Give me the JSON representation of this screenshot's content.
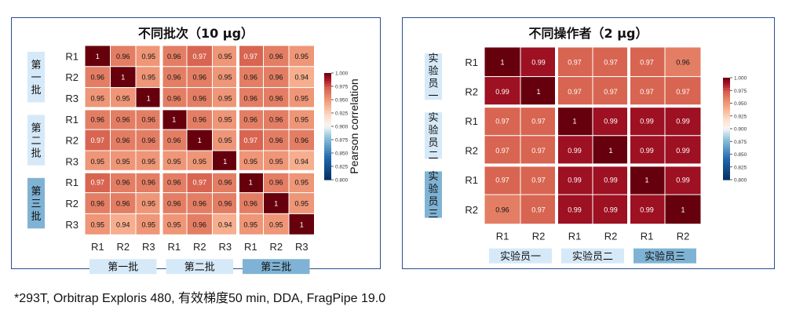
{
  "footer_note": "*293T, Orbitrap Exploris 480, 有效梯度50 min, DDA, FragPipe 19.0",
  "chart_data": [
    {
      "type": "heatmap",
      "title": "不同批次（10 μg）",
      "row_labels": [
        "R1",
        "R2",
        "R3",
        "R1",
        "R2",
        "R3",
        "R1",
        "R2",
        "R3"
      ],
      "col_labels": [
        "R1",
        "R2",
        "R3",
        "R1",
        "R2",
        "R3",
        "R1",
        "R2",
        "R3"
      ],
      "row_groups": [
        "第一批",
        "第二批",
        "第三批"
      ],
      "col_groups": [
        "第一批",
        "第二批",
        "第三批"
      ],
      "values": [
        [
          1,
          0.96,
          0.95,
          0.96,
          0.97,
          0.95,
          0.97,
          0.96,
          0.95
        ],
        [
          0.96,
          1,
          0.95,
          0.96,
          0.96,
          0.95,
          0.96,
          0.96,
          0.94
        ],
        [
          0.95,
          0.95,
          1,
          0.96,
          0.96,
          0.95,
          0.96,
          0.96,
          0.95
        ],
        [
          0.96,
          0.96,
          0.96,
          1,
          0.96,
          0.95,
          0.96,
          0.96,
          0.95
        ],
        [
          0.97,
          0.96,
          0.96,
          0.96,
          1,
          0.95,
          0.97,
          0.96,
          0.96
        ],
        [
          0.95,
          0.95,
          0.95,
          0.95,
          0.95,
          1,
          0.95,
          0.95,
          0.94
        ],
        [
          0.97,
          0.96,
          0.96,
          0.96,
          0.97,
          0.96,
          1,
          0.96,
          0.95
        ],
        [
          0.96,
          0.96,
          0.95,
          0.96,
          0.96,
          0.96,
          0.96,
          1,
          0.95
        ],
        [
          0.95,
          0.94,
          0.95,
          0.95,
          0.96,
          0.94,
          0.95,
          0.95,
          1
        ]
      ],
      "colorbar": {
        "label": "Pearson correlation",
        "min": 0.8,
        "max": 1.0,
        "ticks": [
          "0.800",
          "0.825",
          "0.850",
          "0.875",
          "0.900",
          "0.925",
          "0.950",
          "0.975",
          "1.000"
        ]
      },
      "colors": {
        "high": "#67000d",
        "mid": "#f7f7f7",
        "low": "#053061"
      }
    },
    {
      "type": "heatmap",
      "title": "不同操作者（2 μg）",
      "row_labels": [
        "R1",
        "R2",
        "R1",
        "R2",
        "R1",
        "R2"
      ],
      "col_labels": [
        "R1",
        "R2",
        "R1",
        "R2",
        "R1",
        "R2"
      ],
      "row_groups": [
        "实验员一",
        "实验员二",
        "实验员三"
      ],
      "col_groups": [
        "实验员一",
        "实验员二",
        "实验员三"
      ],
      "values": [
        [
          1,
          0.99,
          0.97,
          0.97,
          0.97,
          0.96
        ],
        [
          0.99,
          1,
          0.97,
          0.97,
          0.97,
          0.97
        ],
        [
          0.97,
          0.97,
          1,
          0.99,
          0.99,
          0.99
        ],
        [
          0.97,
          0.97,
          0.99,
          1,
          0.99,
          0.99
        ],
        [
          0.97,
          0.97,
          0.99,
          0.99,
          1,
          0.99
        ],
        [
          0.96,
          0.97,
          0.99,
          0.99,
          0.99,
          1
        ]
      ],
      "colorbar": {
        "label": "",
        "min": 0.8,
        "max": 1.0,
        "ticks": [
          "0.800",
          "0.825",
          "0.850",
          "0.875",
          "0.900",
          "0.925",
          "0.950",
          "0.975",
          "1.000"
        ]
      },
      "colors": {
        "high": "#67000d",
        "mid": "#f7f7f7",
        "low": "#053061"
      }
    }
  ]
}
